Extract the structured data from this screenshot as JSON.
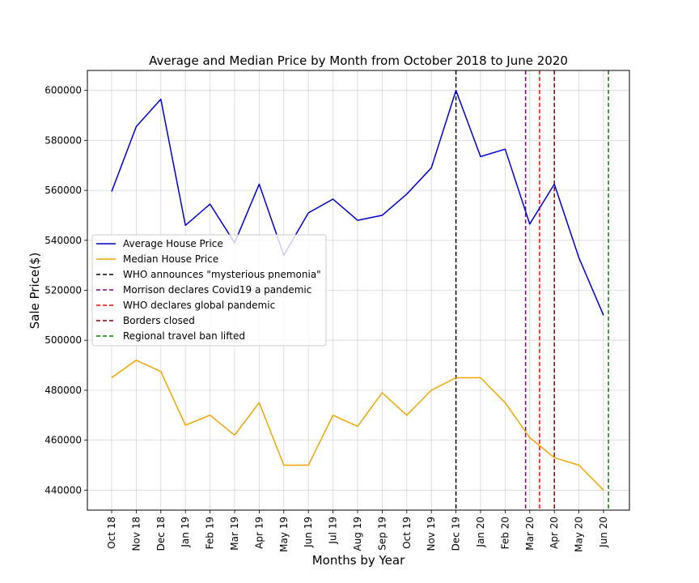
{
  "chart_data": {
    "type": "line",
    "title": "Average and Median Price by Month from October 2018 to June 2020",
    "xlabel": "Months by Year",
    "ylabel": "Sale Price($)",
    "categories": [
      "Oct 18",
      "Nov 18",
      "Dec 18",
      "Jan 19",
      "Feb 19",
      "Mar 19",
      "Apr 19",
      "May 19",
      "Jun 19",
      "Jul 19",
      "Aug 19",
      "Sep 19",
      "Oct 19",
      "Nov 19",
      "Dec 19",
      "Jan 20",
      "Feb 20",
      "Mar 20",
      "Apr 20",
      "May 20",
      "Jun 20"
    ],
    "ylim": [
      432000,
      608000
    ],
    "yticks": [
      440000,
      460000,
      480000,
      500000,
      520000,
      540000,
      560000,
      580000,
      600000
    ],
    "grid": true,
    "legend_position": "center-left",
    "series": [
      {
        "name": "Average House Price",
        "color": "#0000cd",
        "values": [
          559500,
          585500,
          596500,
          546000,
          554500,
          539000,
          562500,
          534000,
          551000,
          556500,
          548000,
          550000,
          558500,
          569000,
          600000,
          573500,
          576500,
          546500,
          562500,
          533000,
          510000
        ]
      },
      {
        "name": "Median House Price",
        "color": "#f0a500",
        "values": [
          485000,
          492000,
          487500,
          466000,
          470000,
          462000,
          475000,
          450000,
          450000,
          470000,
          465500,
          479000,
          470000,
          480000,
          485000,
          485000,
          475000,
          461000,
          453000,
          450000,
          440000
        ]
      }
    ],
    "events": [
      {
        "name": "WHO announces \"mysterious pnemonia\"",
        "color": "#000000",
        "x": 14
      },
      {
        "name": "Morrison declares Covid19 a pandemic",
        "color": "#800080",
        "x": 16.83
      },
      {
        "name": "WHO declares global pandemic",
        "color": "#ff0000",
        "x": 17.4
      },
      {
        "name": "Borders closed",
        "color": "#800000",
        "x": 18
      },
      {
        "name": "Regional travel ban lifted",
        "color": "#008000",
        "x": 20.2
      }
    ]
  }
}
